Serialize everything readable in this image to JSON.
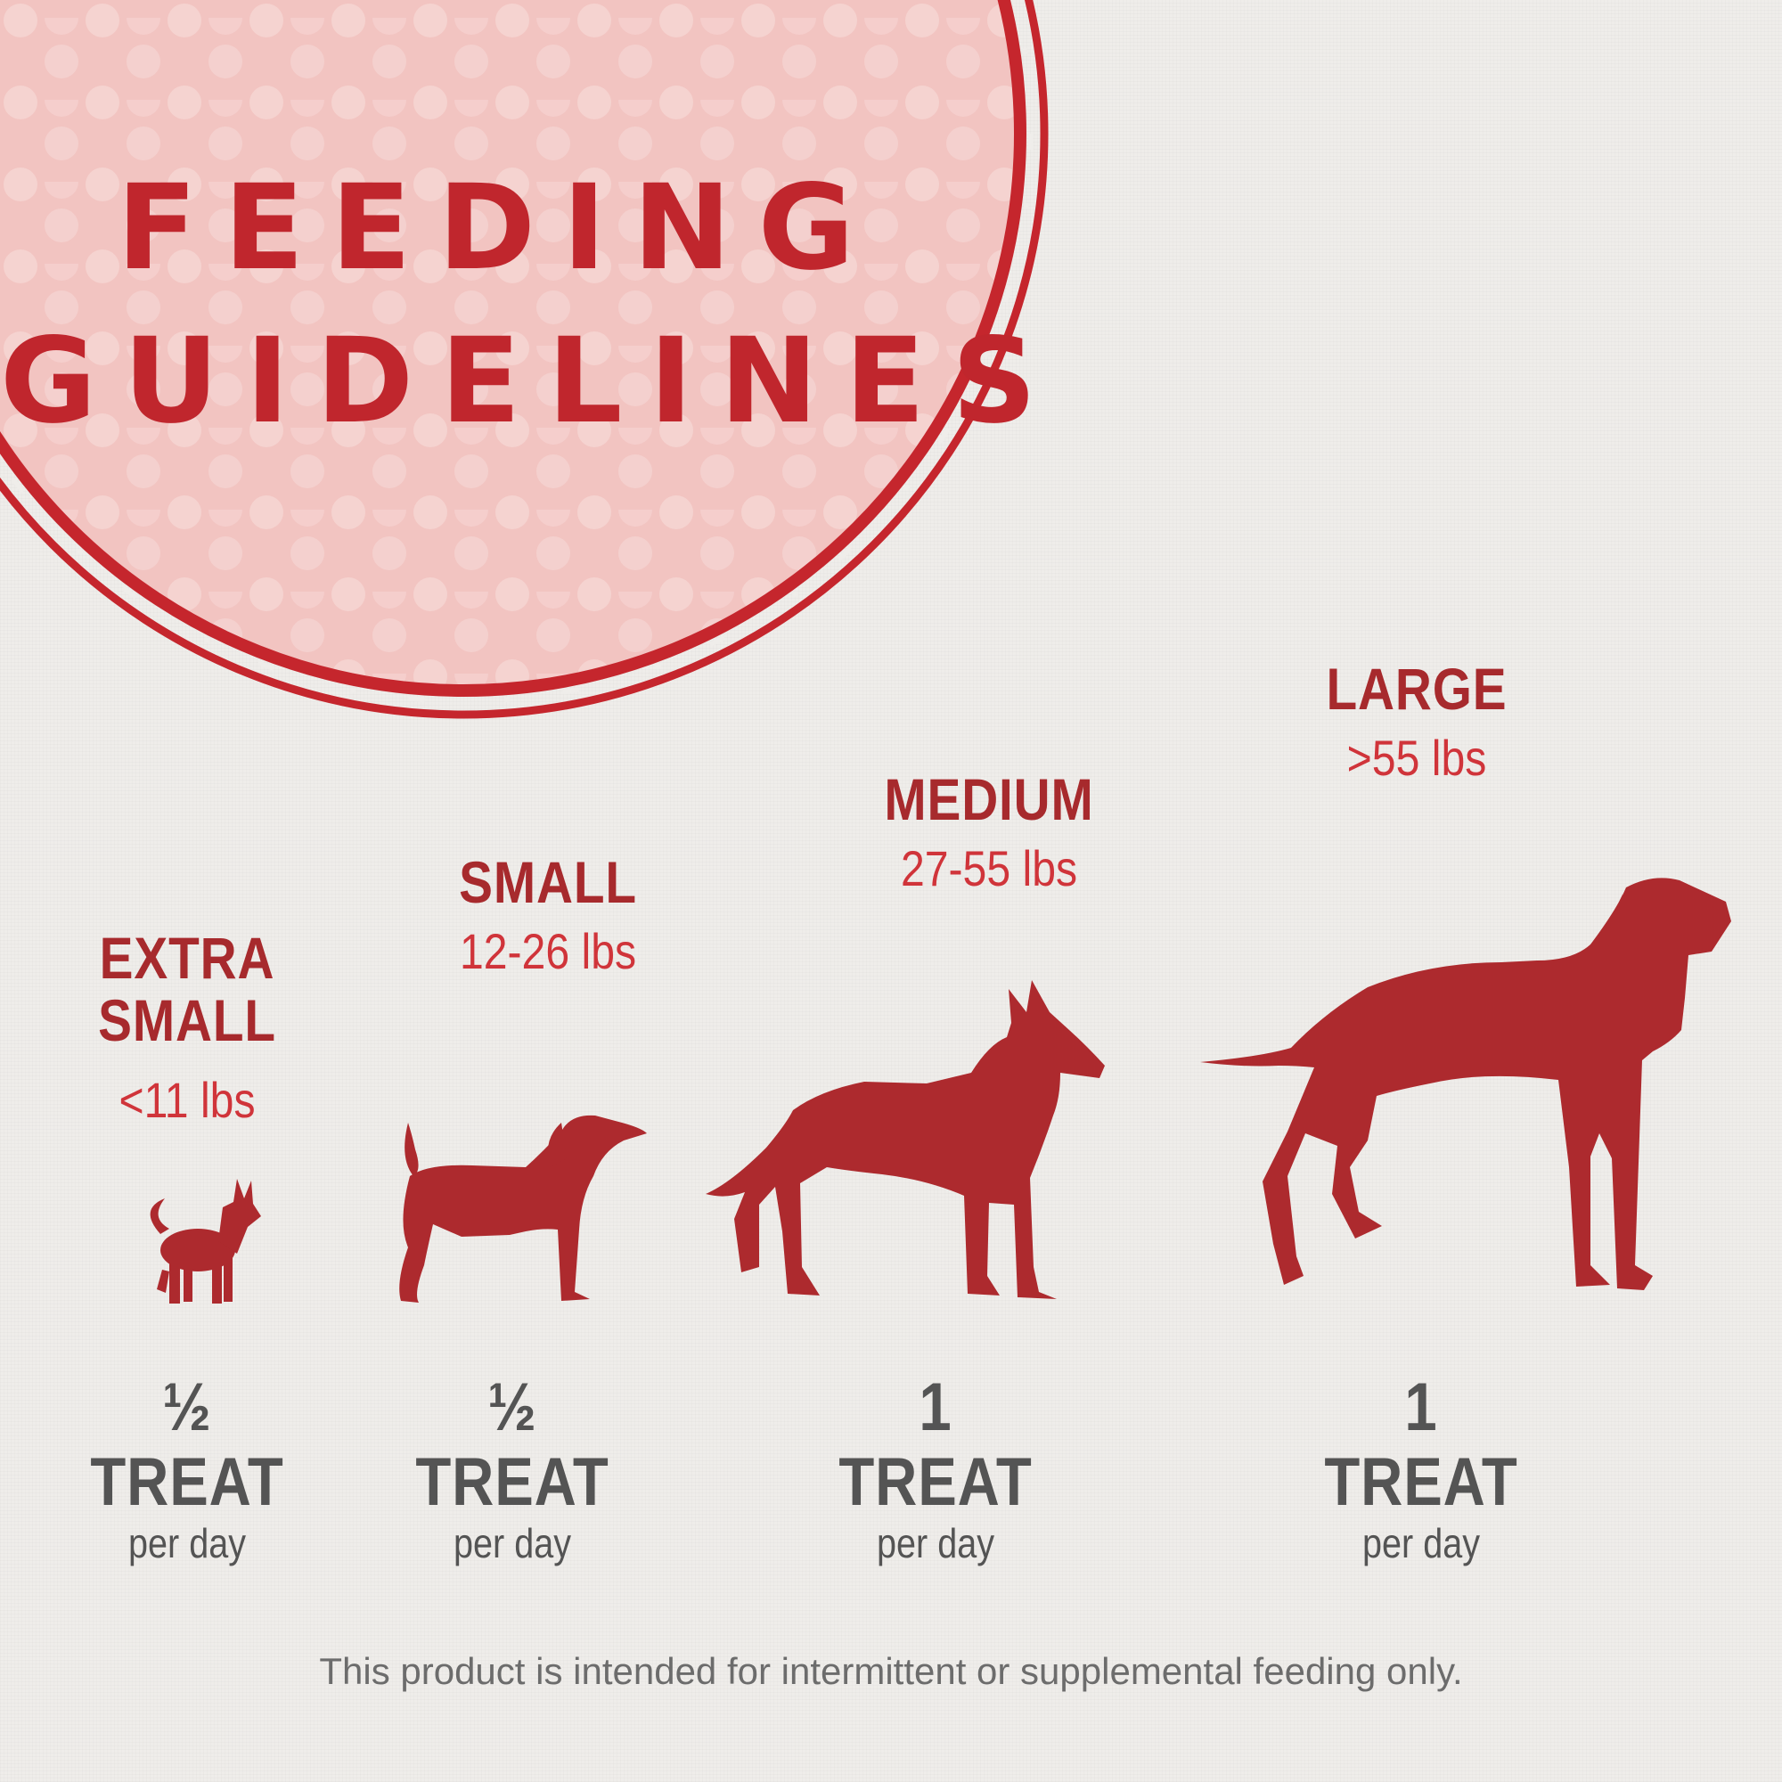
{
  "header": {
    "title_line1": "FEEDING",
    "title_line2": "GUIDELINES"
  },
  "sizes": [
    {
      "name_line1": "EXTRA",
      "name_line2": "SMALL",
      "weight": "<11 lbs",
      "dose": "½ TREAT",
      "frequency": "per day",
      "icon": "chihuahua-silhouette-icon"
    },
    {
      "name_line1": "SMALL",
      "name_line2": "",
      "weight": "12-26 lbs",
      "dose": "½ TREAT",
      "frequency": "per day",
      "icon": "beagle-silhouette-icon"
    },
    {
      "name_line1": "MEDIUM",
      "name_line2": "",
      "weight": "27-55 lbs",
      "dose": "1 TREAT",
      "frequency": "per day",
      "icon": "shepherd-silhouette-icon"
    },
    {
      "name_line1": "LARGE",
      "name_line2": "",
      "weight": ">55 lbs",
      "dose": "1 TREAT",
      "frequency": "per day",
      "icon": "great-dane-silhouette-icon"
    }
  ],
  "footnote": "This product is intended for intermittent or supplemental feeding only.",
  "colors": {
    "accent_red": "#c0262d",
    "silhouette_red": "#ad2a2e",
    "badge_pink": "#f2c4c1",
    "text_gray": "#545454",
    "background": "#efedea"
  }
}
